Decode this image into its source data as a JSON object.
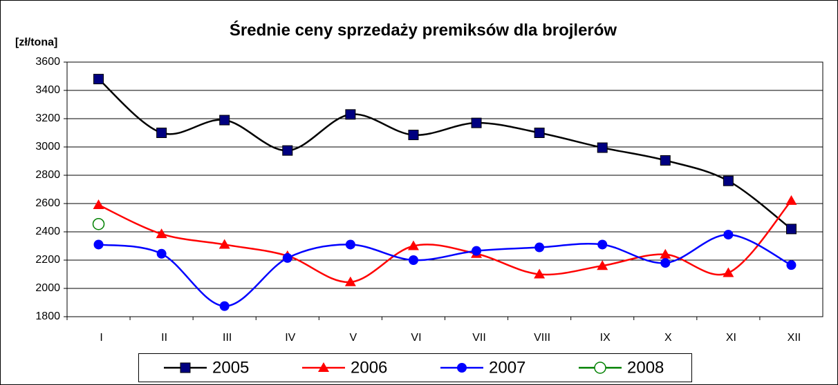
{
  "chart_data": {
    "type": "line",
    "title": "Średnie ceny sprzedaży premiksów dla brojlerów",
    "y_label": "[zł/tona]",
    "categories": [
      "I",
      "II",
      "III",
      "IV",
      "V",
      "VI",
      "VII",
      "VIII",
      "IX",
      "X",
      "XI",
      "XII"
    ],
    "series": [
      {
        "name": "2005",
        "color": "#000000",
        "marker": "square",
        "marker_color": "#000080",
        "values": [
          3480,
          3100,
          3190,
          2975,
          3230,
          3085,
          3170,
          3100,
          2995,
          2905,
          2760,
          2420
        ]
      },
      {
        "name": "2006",
        "color": "#ff0000",
        "marker": "triangle",
        "marker_color": "#ff0000",
        "values": [
          2590,
          2385,
          2310,
          2230,
          2045,
          2300,
          2245,
          2100,
          2160,
          2240,
          2110,
          2620
        ]
      },
      {
        "name": "2007",
        "color": "#0000ff",
        "marker": "circle",
        "marker_color": "#0000ff",
        "values": [
          2310,
          2245,
          1875,
          2215,
          2310,
          2200,
          2265,
          2290,
          2310,
          2180,
          2380,
          2165
        ]
      },
      {
        "name": "2008",
        "color": "#008000",
        "marker": "open-circle",
        "marker_color": "#008000",
        "values": [
          2455,
          null,
          null,
          null,
          null,
          null,
          null,
          null,
          null,
          null,
          null,
          null
        ]
      }
    ],
    "ylim": [
      1800,
      3600
    ],
    "yticks": [
      1800,
      2000,
      2200,
      2400,
      2600,
      2800,
      3000,
      3200,
      3400,
      3600
    ],
    "grid": true,
    "smooth": true,
    "legend": "bottom"
  }
}
